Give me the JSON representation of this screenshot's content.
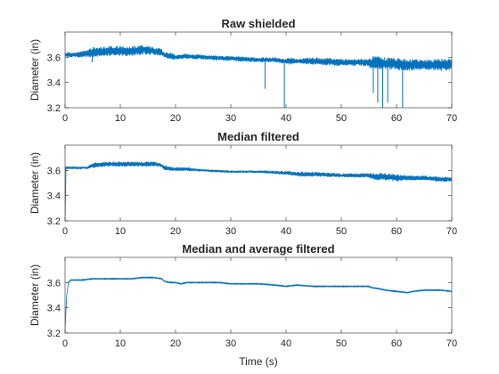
{
  "chart_data": [
    {
      "type": "line",
      "title": "Raw shielded",
      "xlabel": "",
      "ylabel": "Diameter (in)",
      "xlim": [
        0,
        70
      ],
      "ylim": [
        3.2,
        3.8
      ],
      "xticks": [
        "0",
        "10",
        "20",
        "30",
        "40",
        "50",
        "60",
        "70"
      ],
      "yticks": [
        "3.2",
        "3.4",
        "3.6"
      ],
      "grid": false,
      "color": "#0072bd",
      "series": [
        {
          "x": [
            0,
            2,
            4,
            5,
            8,
            10,
            12,
            14,
            16,
            17.5,
            18,
            19,
            20,
            22,
            25,
            30,
            35,
            38,
            39.5,
            40,
            40.5,
            42,
            45,
            50,
            55,
            55.5,
            56,
            58,
            60,
            62,
            65,
            68,
            70
          ],
          "y": [
            3.62,
            3.62,
            3.63,
            3.64,
            3.65,
            3.65,
            3.65,
            3.66,
            3.65,
            3.64,
            3.62,
            3.61,
            3.6,
            3.61,
            3.6,
            3.59,
            3.58,
            3.58,
            3.57,
            3.57,
            3.57,
            3.57,
            3.57,
            3.56,
            3.56,
            3.55,
            3.56,
            3.55,
            3.55,
            3.54,
            3.54,
            3.54,
            3.54
          ],
          "amplitude": [
            0.02,
            0.02,
            0.03,
            0.04,
            0.04,
            0.04,
            0.04,
            0.04,
            0.03,
            0.03,
            0.02,
            0.03,
            0.02,
            0.02,
            0.02,
            0.02,
            0.02,
            0.02,
            0.02,
            0.02,
            0.03,
            0.02,
            0.03,
            0.03,
            0.03,
            0.06,
            0.05,
            0.05,
            0.05,
            0.05,
            0.04,
            0.05,
            0.05
          ]
        }
      ],
      "spikes": [
        {
          "x": 4.9,
          "y": 3.56
        },
        {
          "x": 36.2,
          "y": 3.35
        },
        {
          "x": 39.7,
          "y": 3.2
        },
        {
          "x": 55.8,
          "y": 3.32
        },
        {
          "x": 56.6,
          "y": 3.24
        },
        {
          "x": 57.5,
          "y": 3.2
        },
        {
          "x": 58.4,
          "y": 3.24
        },
        {
          "x": 61.1,
          "y": 3.2
        }
      ]
    },
    {
      "type": "line",
      "title": "Median filtered",
      "xlabel": "",
      "ylabel": "Diameter (in)",
      "xlim": [
        0,
        70
      ],
      "ylim": [
        3.2,
        3.8
      ],
      "xticks": [
        "0",
        "10",
        "20",
        "30",
        "40",
        "50",
        "60",
        "70"
      ],
      "yticks": [
        "3.2",
        "3.4",
        "3.6"
      ],
      "grid": false,
      "color": "#0072bd",
      "series": [
        {
          "x": [
            0,
            0.3,
            2,
            4,
            5,
            8,
            10,
            12,
            14,
            16,
            17.5,
            18,
            20,
            22,
            25,
            30,
            35,
            40,
            42,
            45,
            50,
            55,
            56,
            58,
            60,
            62,
            65,
            68,
            70
          ],
          "y": [
            3.62,
            3.62,
            3.62,
            3.62,
            3.64,
            3.65,
            3.65,
            3.65,
            3.65,
            3.65,
            3.64,
            3.62,
            3.61,
            3.61,
            3.6,
            3.59,
            3.59,
            3.58,
            3.57,
            3.57,
            3.56,
            3.56,
            3.55,
            3.55,
            3.54,
            3.54,
            3.54,
            3.53,
            3.53
          ],
          "amplitude": [
            0.005,
            0.005,
            0.005,
            0.01,
            0.02,
            0.02,
            0.02,
            0.02,
            0.02,
            0.02,
            0.015,
            0.02,
            0.015,
            0.015,
            0.01,
            0.01,
            0.01,
            0.015,
            0.02,
            0.02,
            0.015,
            0.02,
            0.03,
            0.03,
            0.03,
            0.02,
            0.02,
            0.02,
            0.02
          ]
        }
      ],
      "start": {
        "x": [
          0,
          0.15
        ],
        "y": [
          3.2,
          3.62
        ]
      }
    },
    {
      "type": "line",
      "title": "Median and average filtered",
      "xlabel": "Time (s)",
      "ylabel": "Diameter (in)",
      "xlim": [
        0,
        70
      ],
      "ylim": [
        3.2,
        3.8
      ],
      "xticks": [
        "0",
        "10",
        "20",
        "30",
        "40",
        "50",
        "60",
        "70"
      ],
      "yticks": [
        "3.2",
        "3.4",
        "3.6"
      ],
      "grid": false,
      "color": "#0072bd",
      "series": [
        {
          "x": [
            0,
            0.3,
            0.6,
            1,
            3,
            5,
            8,
            10,
            12,
            14,
            16,
            17.5,
            18,
            19,
            20,
            21,
            22,
            25,
            28,
            30,
            33,
            35,
            38,
            40,
            42,
            45,
            48,
            50,
            53,
            55,
            55.5,
            57,
            58,
            60,
            62,
            63,
            65,
            68,
            70
          ],
          "y": [
            3.22,
            3.5,
            3.6,
            3.62,
            3.62,
            3.63,
            3.63,
            3.63,
            3.63,
            3.64,
            3.64,
            3.63,
            3.61,
            3.6,
            3.6,
            3.59,
            3.6,
            3.6,
            3.6,
            3.59,
            3.59,
            3.59,
            3.58,
            3.57,
            3.58,
            3.57,
            3.57,
            3.57,
            3.57,
            3.57,
            3.56,
            3.55,
            3.54,
            3.53,
            3.52,
            3.53,
            3.54,
            3.54,
            3.53
          ],
          "amplitude": [
            0.003,
            0.003,
            0.003,
            0.003,
            0.003,
            0.003,
            0.003,
            0.003,
            0.003,
            0.003,
            0.003,
            0.003,
            0.003,
            0.003,
            0.003,
            0.003,
            0.003,
            0.003,
            0.003,
            0.003,
            0.003,
            0.003,
            0.003,
            0.003,
            0.003,
            0.003,
            0.003,
            0.003,
            0.003,
            0.003,
            0.003,
            0.003,
            0.003,
            0.003,
            0.003,
            0.003,
            0.003,
            0.003,
            0.003
          ]
        }
      ]
    }
  ]
}
